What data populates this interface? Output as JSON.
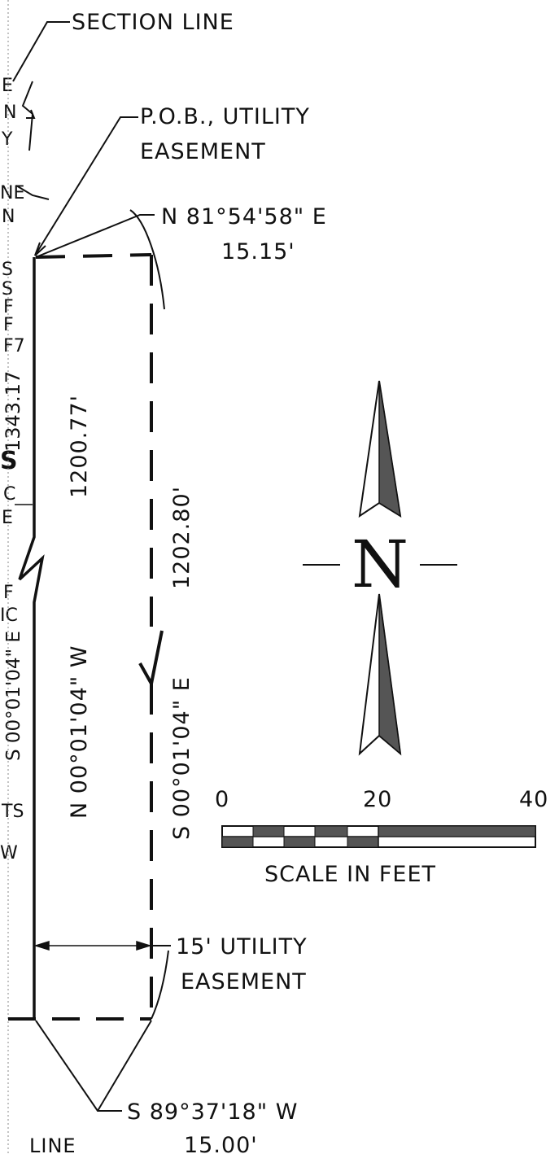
{
  "labels": {
    "section_line": "SECTION LINE",
    "pob_line1": "P.O.B., UTILITY",
    "pob_line2": "EASEMENT",
    "north_call_bearing": "N 81°54'58\" E",
    "north_call_distance": "15.15'",
    "west_distance": "1200.77'",
    "west_bearing": "N 00°01'04\" W",
    "east_distance": "1202.80'",
    "east_bearing": "S 00°01'04\" E",
    "easement_line1": "15' UTILITY",
    "easement_line2": "EASEMENT",
    "south_call_bearing": "S 89°37'18\" W",
    "south_call_distance": "15.00'",
    "bottom_line": "LINE"
  },
  "north_arrow": {
    "letter": "N"
  },
  "scale_bar": {
    "tick_0": "0",
    "tick_20": "20",
    "tick_40": "40",
    "caption": "SCALE IN FEET"
  },
  "margin_fragments": {
    "t1": "E",
    "t2": "N",
    "t3": "Y",
    "t4": "NE",
    "t5": "N",
    "t6": "S",
    "t7": "S",
    "t8": "F",
    "t9": "F",
    "t10": "F7",
    "t11": "1343.17",
    "t12": "S",
    "t13": "C",
    "t14": "E",
    "t15": "F",
    "t16": "IC",
    "t17": "S 00°01'04\" E",
    "t18": "TS",
    "t19": "W"
  }
}
